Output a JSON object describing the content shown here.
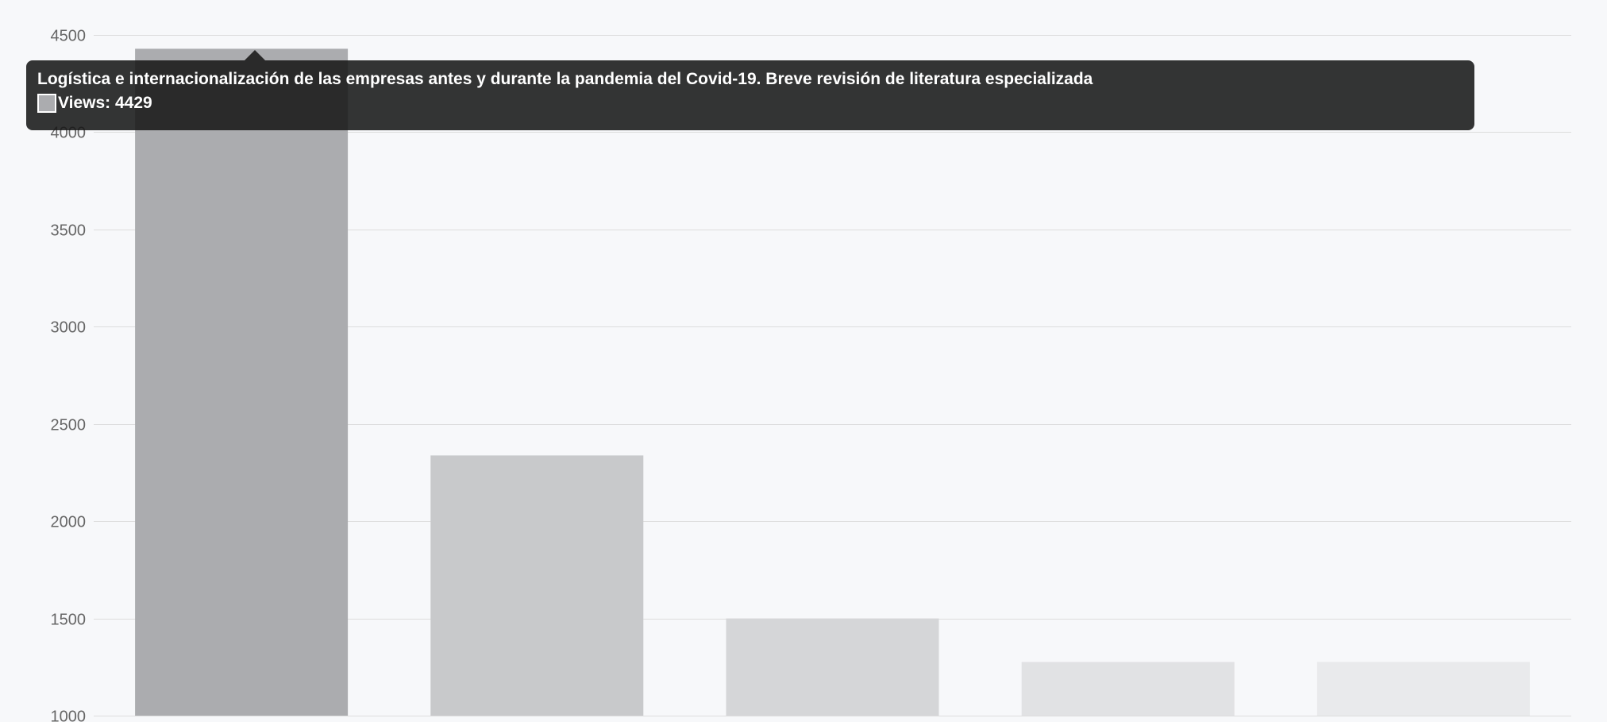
{
  "chart_data": {
    "type": "bar",
    "series": [
      {
        "name": "Views",
        "values": [
          4429,
          2338,
          1500,
          1276,
          1276
        ]
      }
    ],
    "ylim": [
      1000,
      4500
    ],
    "yticks": [
      1000,
      1500,
      2000,
      2500,
      3000,
      3500,
      4000,
      4500
    ],
    "grid": true,
    "bar_colors": [
      "#abacaf",
      "#c8c9cb",
      "#d5d6d8",
      "#e1e2e4",
      "#e9eaec"
    ],
    "gridline_color": "#dddddd",
    "background": "#f7f8fa"
  },
  "tooltip": {
    "title": "Logística e internacionalización de las empresas antes y durante la pandemia del Covid-19. Breve revisión de literatura especializada",
    "label": "Views: 4429",
    "swatch_color": "#abacaf"
  }
}
